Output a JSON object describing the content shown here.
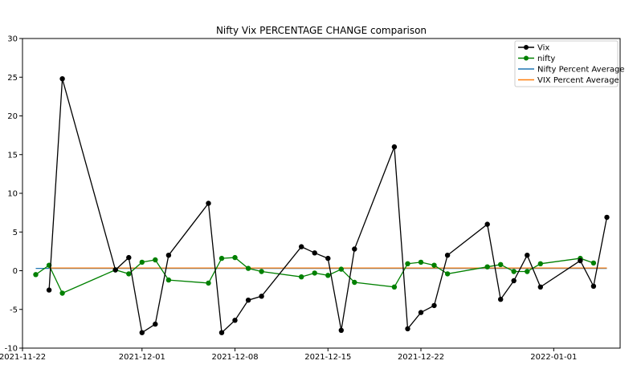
{
  "chart_data": {
    "type": "line",
    "title": "Nifty Vix PERCENTAGE CHANGE comparison",
    "xlabel": "",
    "ylabel": "",
    "xlim": [
      "2021-11-22",
      "2022-01-06"
    ],
    "ylim": [
      -10,
      30
    ],
    "x_ticks": [
      "2021-11-22",
      "2021-12-01",
      "2021-12-08",
      "2021-12-15",
      "2021-12-22",
      "2022-01-01"
    ],
    "y_ticks": [
      -10,
      -5,
      0,
      5,
      10,
      15,
      20,
      25,
      30
    ],
    "grid": false,
    "legend_position": "top-right",
    "series": [
      {
        "name": "Vix",
        "color": "#000000",
        "marker": "circle",
        "x": [
          "2021-11-24",
          "2021-11-25",
          "2021-11-29",
          "2021-11-30",
          "2021-12-01",
          "2021-12-02",
          "2021-12-03",
          "2021-12-06",
          "2021-12-07",
          "2021-12-08",
          "2021-12-09",
          "2021-12-10",
          "2021-12-13",
          "2021-12-14",
          "2021-12-15",
          "2021-12-16",
          "2021-12-17",
          "2021-12-20",
          "2021-12-21",
          "2021-12-22",
          "2021-12-23",
          "2021-12-24",
          "2021-12-27",
          "2021-12-28",
          "2021-12-29",
          "2021-12-30",
          "2021-12-31",
          "2022-01-03",
          "2022-01-04",
          "2022-01-05"
        ],
        "values": [
          -2.5,
          24.8,
          0.1,
          1.7,
          -8.0,
          -6.9,
          2.0,
          8.7,
          -8.0,
          -6.4,
          -3.8,
          -3.3,
          3.1,
          2.3,
          1.6,
          -7.7,
          2.8,
          16.0,
          -7.5,
          -5.4,
          -4.5,
          2.0,
          6.0,
          -3.7,
          -1.3,
          2.0,
          -2.1,
          1.3,
          -2.0,
          6.9
        ]
      },
      {
        "name": "nifty",
        "color": "#008000",
        "marker": "circle",
        "x": [
          "2021-11-23",
          "2021-11-24",
          "2021-11-25",
          "2021-11-29",
          "2021-11-30",
          "2021-12-01",
          "2021-12-02",
          "2021-12-03",
          "2021-12-06",
          "2021-12-07",
          "2021-12-08",
          "2021-12-09",
          "2021-12-10",
          "2021-12-13",
          "2021-12-14",
          "2021-12-15",
          "2021-12-16",
          "2021-12-17",
          "2021-12-20",
          "2021-12-21",
          "2021-12-22",
          "2021-12-23",
          "2021-12-24",
          "2021-12-27",
          "2021-12-28",
          "2021-12-29",
          "2021-12-30",
          "2021-12-31",
          "2022-01-03",
          "2022-01-04"
        ],
        "values": [
          -0.5,
          0.7,
          -2.9,
          0.1,
          -0.4,
          1.1,
          1.4,
          -1.2,
          -1.6,
          1.6,
          1.7,
          0.3,
          -0.1,
          -0.8,
          -0.3,
          -0.6,
          0.2,
          -1.5,
          -2.1,
          0.9,
          1.1,
          0.7,
          -0.4,
          0.5,
          0.8,
          -0.1,
          -0.1,
          0.9,
          1.6,
          1.0
        ]
      },
      {
        "name": "Nifty Percent Average",
        "color": "#1f77b4",
        "marker": "none",
        "x": [
          "2021-11-23",
          "2022-01-05"
        ],
        "values": [
          0.3,
          0.3
        ]
      },
      {
        "name": "VIX Percent Average",
        "color": "#ff7f0e",
        "marker": "none",
        "x": [
          "2021-11-24",
          "2022-01-05"
        ],
        "values": [
          0.35,
          0.35
        ]
      }
    ]
  }
}
